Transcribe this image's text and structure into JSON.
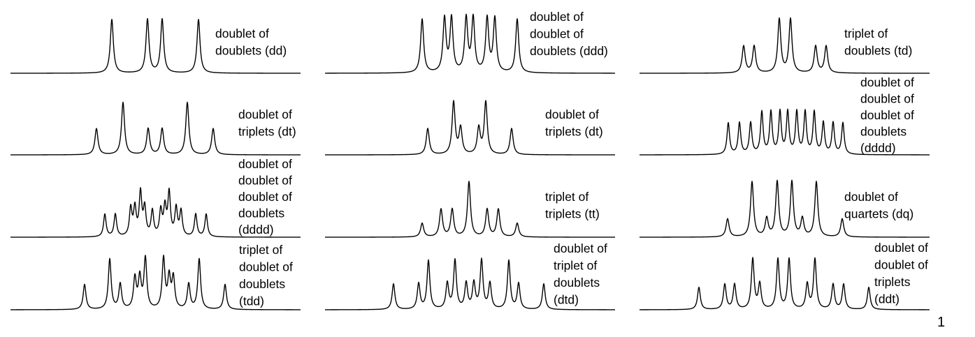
{
  "page_number": "1",
  "panels": [
    {
      "id": "dd-1",
      "label": [
        "doublet of",
        "doublets (dd)"
      ],
      "peaks": [
        [
          160,
          1
        ],
        [
          211,
          1
        ],
        [
          232,
          1
        ],
        [
          284,
          1
        ]
      ]
    },
    {
      "id": "ddd-1",
      "label": [
        "doublet of",
        "doublet of",
        "doublets (ddd)"
      ],
      "peaks": [
        [
          604,
          1
        ],
        [
          636,
          1
        ],
        [
          646,
          1
        ],
        [
          667,
          1
        ],
        [
          677,
          1
        ],
        [
          697,
          1
        ],
        [
          708,
          1
        ],
        [
          740,
          1
        ]
      ]
    },
    {
      "id": "td-1",
      "label": [
        "triplet of",
        "doublets (td)"
      ],
      "peaks": [
        [
          1064,
          0.5
        ],
        [
          1079,
          0.5
        ],
        [
          1115,
          1
        ],
        [
          1131,
          1
        ],
        [
          1167,
          0.5
        ],
        [
          1182,
          0.5
        ]
      ]
    },
    {
      "id": "dt-1",
      "label": [
        "doublet of",
        "triplets (dt)"
      ],
      "peaks": [
        [
          138,
          0.5
        ],
        [
          176,
          1
        ],
        [
          212,
          0.5
        ],
        [
          232,
          0.5
        ],
        [
          268,
          1
        ],
        [
          305,
          0.5
        ]
      ]
    },
    {
      "id": "dt-2",
      "label": [
        "doublet of",
        "triplets (dt)"
      ],
      "peaks": [
        [
          612,
          0.5
        ],
        [
          649,
          1
        ],
        [
          659,
          0.5
        ],
        [
          685,
          0.5
        ],
        [
          695,
          1
        ],
        [
          732,
          0.5
        ]
      ]
    },
    {
      "id": "dddd-1",
      "label": [
        "doublet of",
        "doublet of",
        "doublet of",
        "doublets",
        "(dddd)"
      ],
      "peaks": [
        [
          1042,
          0.6
        ],
        [
          1058,
          0.6
        ],
        [
          1074,
          0.6
        ],
        [
          1090,
          0.8
        ],
        [
          1103,
          0.8
        ],
        [
          1116,
          0.8
        ],
        [
          1127,
          0.8
        ],
        [
          1140,
          0.8
        ],
        [
          1152,
          0.8
        ],
        [
          1165,
          0.8
        ],
        [
          1178,
          0.6
        ],
        [
          1192,
          0.6
        ],
        [
          1206,
          0.6
        ]
      ]
    },
    {
      "id": "dddd-2",
      "label": [
        "doublet of",
        "doublet of",
        "doublet of",
        "doublets",
        "(dddd)"
      ],
      "peaks": [
        [
          150,
          0.45
        ],
        [
          165,
          0.45
        ],
        [
          187,
          0.55
        ],
        [
          193,
          0.55
        ],
        [
          201,
          0.85
        ],
        [
          207,
          0.55
        ],
        [
          218,
          0.5
        ],
        [
          230,
          0.5
        ],
        [
          236,
          0.55
        ],
        [
          242,
          0.85
        ],
        [
          252,
          0.55
        ],
        [
          259,
          0.5
        ],
        [
          280,
          0.45
        ],
        [
          295,
          0.45
        ]
      ]
    },
    {
      "id": "tt-1",
      "label": [
        "triplet of",
        "triplets (tt)"
      ],
      "peaks": [
        [
          604,
          0.25
        ],
        [
          631,
          0.5
        ],
        [
          647,
          0.5
        ],
        [
          671,
          1
        ],
        [
          697,
          0.5
        ],
        [
          713,
          0.5
        ],
        [
          740,
          0.25
        ]
      ]
    },
    {
      "id": "dq-1",
      "label": [
        "doublet of",
        "quartets (dq)"
      ],
      "peaks": [
        [
          1041,
          0.33
        ],
        [
          1076,
          1
        ],
        [
          1097,
          0.33
        ],
        [
          1112,
          1
        ],
        [
          1133,
          1
        ],
        [
          1148,
          0.33
        ],
        [
          1168,
          1
        ],
        [
          1205,
          0.33
        ]
      ]
    },
    {
      "id": "tdd-1",
      "label": [
        "triplet of",
        "doublet of",
        "doublets",
        "(tdd)"
      ],
      "peaks": [
        [
          121,
          0.45
        ],
        [
          157,
          0.9
        ],
        [
          172,
          0.45
        ],
        [
          193,
          0.55
        ],
        [
          200,
          0.55
        ],
        [
          208,
          0.9
        ],
        [
          234,
          0.9
        ],
        [
          242,
          0.55
        ],
        [
          248,
          0.55
        ],
        [
          270,
          0.45
        ],
        [
          285,
          0.9
        ],
        [
          322,
          0.45
        ]
      ]
    },
    {
      "id": "dtd-1",
      "label": [
        "doublet of",
        "triplet of",
        "doublets",
        "(dtd)"
      ],
      "peaks": [
        [
          563,
          0.45
        ],
        [
          599,
          0.45
        ],
        [
          613,
          0.85
        ],
        [
          640,
          0.45
        ],
        [
          651,
          0.85
        ],
        [
          667,
          0.45
        ],
        [
          678,
          0.45
        ],
        [
          689,
          0.85
        ],
        [
          701,
          0.45
        ],
        [
          728,
          0.85
        ],
        [
          742,
          0.45
        ],
        [
          778,
          0.45
        ]
      ]
    },
    {
      "id": "ddt-1",
      "label": [
        "doublet of",
        "doublet of",
        "triplets",
        "(ddt)"
      ],
      "peaks": [
        [
          1000,
          0.4
        ],
        [
          1037,
          0.45
        ],
        [
          1051,
          0.45
        ],
        [
          1077,
          0.9
        ],
        [
          1087,
          0.45
        ],
        [
          1113,
          0.9
        ],
        [
          1129,
          0.9
        ],
        [
          1155,
          0.45
        ],
        [
          1166,
          0.9
        ],
        [
          1192,
          0.45
        ],
        [
          1207,
          0.45
        ],
        [
          1243,
          0.4
        ]
      ]
    }
  ]
}
